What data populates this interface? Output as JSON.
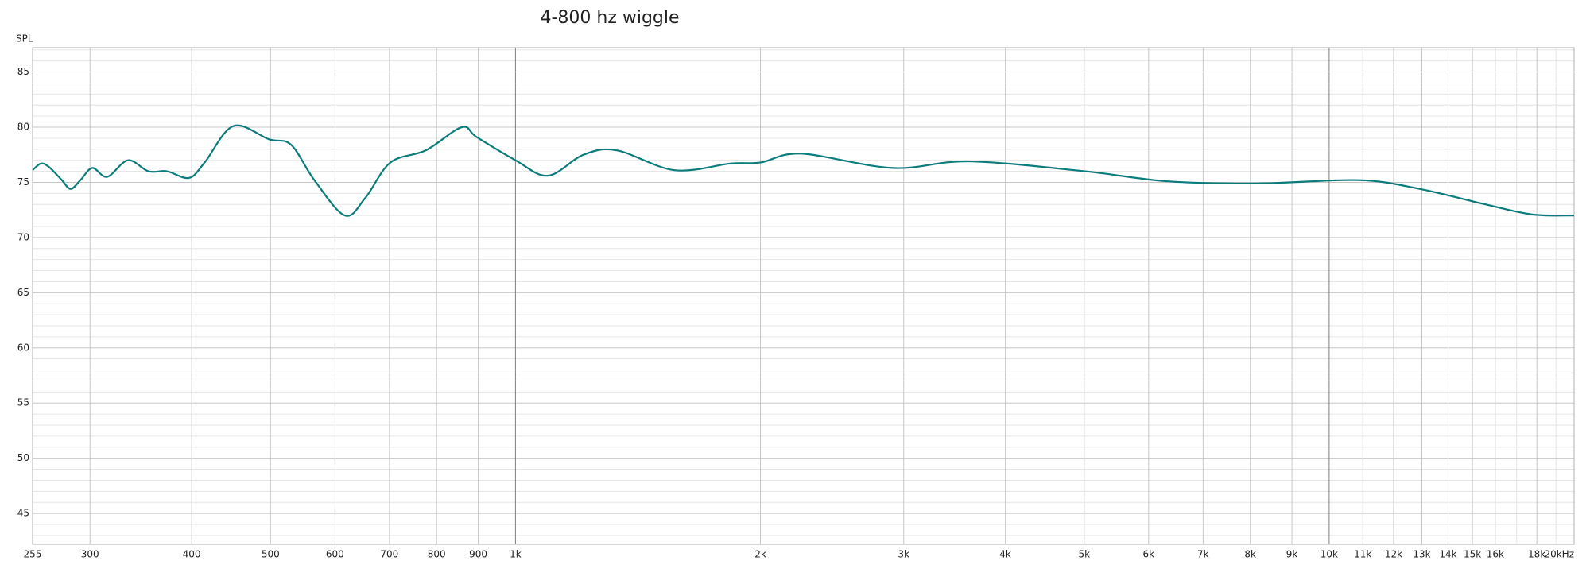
{
  "chart_data": {
    "type": "line",
    "title": "4-800 hz wiggle",
    "ylabel": "SPL",
    "xscale": "log",
    "color": "#0b7b7b",
    "grid": true,
    "xlim": [
      255,
      20000
    ],
    "ylim": [
      42.2,
      87.2
    ],
    "yticks": [
      45,
      50,
      55,
      60,
      65,
      70,
      75,
      80,
      85
    ],
    "yminorticks": [
      43,
      44,
      46,
      47,
      48,
      49,
      51,
      52,
      53,
      54,
      56,
      57,
      58,
      59,
      61,
      62,
      63,
      64,
      66,
      67,
      68,
      69,
      71,
      72,
      73,
      74,
      76,
      77,
      78,
      79,
      81,
      82,
      83,
      84,
      86,
      87
    ],
    "xticks": [
      255,
      300,
      400,
      500,
      600,
      700,
      800,
      900,
      {
        "value": 1000,
        "label": "1k"
      },
      {
        "value": 2000,
        "label": "2k"
      },
      {
        "value": 3000,
        "label": "3k"
      },
      {
        "value": 4000,
        "label": "4k"
      },
      {
        "value": 5000,
        "label": "5k"
      },
      {
        "value": 6000,
        "label": "6k"
      },
      {
        "value": 7000,
        "label": "7k"
      },
      {
        "value": 8000,
        "label": "8k"
      },
      {
        "value": 9000,
        "label": "9k"
      },
      {
        "value": 10000,
        "label": "10k"
      },
      {
        "value": 11000,
        "label": "11k"
      },
      {
        "value": 12000,
        "label": "12k"
      },
      {
        "value": 13000,
        "label": "13k"
      },
      {
        "value": 14000,
        "label": "14k"
      },
      {
        "value": 15000,
        "label": "15k"
      },
      {
        "value": 16000,
        "label": "16k"
      },
      {
        "value": 18000,
        "label": "18k"
      },
      {
        "value": 20000,
        "label": "20kHz"
      }
    ],
    "xminorticks": [
      17000,
      19000
    ],
    "x": [
      255,
      261,
      267,
      277,
      284,
      292,
      302,
      315,
      334,
      354,
      373,
      397,
      415,
      450,
      498,
      530,
      566,
      617,
      654,
      702,
      776,
      859,
      896,
      1000,
      1096,
      1212,
      1332,
      1568,
      1837,
      2002,
      2245,
      2907,
      3606,
      5015,
      6307,
      8169,
      10880,
      12930,
      15360,
      17730,
      20000
    ],
    "values": [
      76.1,
      76.7,
      76.4,
      75.2,
      74.4,
      75.2,
      76.3,
      75.5,
      77.0,
      76.0,
      76.0,
      75.4,
      76.8,
      80.1,
      78.9,
      78.4,
      75.2,
      72.0,
      73.6,
      76.8,
      77.9,
      80.0,
      79.1,
      77.0,
      75.6,
      77.5,
      77.9,
      76.1,
      76.7,
      76.8,
      77.6,
      76.3,
      76.9,
      76.0,
      75.1,
      74.9,
      75.2,
      74.4,
      73.1,
      72.1,
      72.0
    ]
  }
}
